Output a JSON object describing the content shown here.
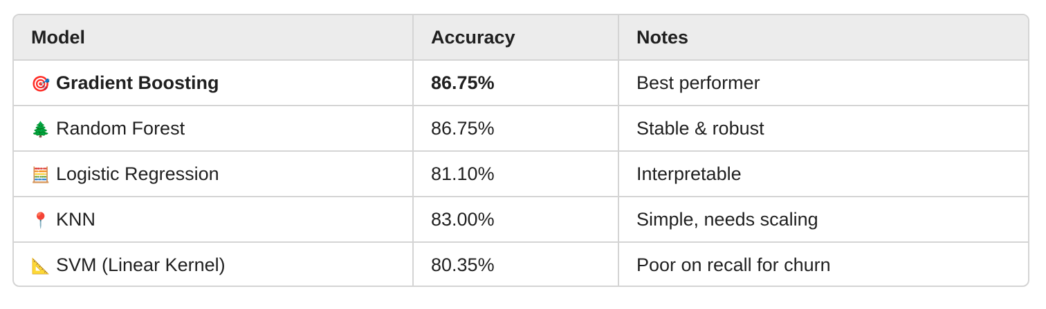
{
  "table": {
    "headers": [
      "Model",
      "Accuracy",
      "Notes"
    ],
    "rows": [
      {
        "icon": "🎯",
        "icon_name": "direct-hit-icon",
        "model": "Gradient Boosting",
        "accuracy": "86.75%",
        "notes": "Best performer",
        "emphasis": true
      },
      {
        "icon": "🌲",
        "icon_name": "evergreen-tree-icon",
        "model": "Random Forest",
        "accuracy": "86.75%",
        "notes": "Stable & robust",
        "emphasis": false
      },
      {
        "icon": "🧮",
        "icon_name": "abacus-icon",
        "model": "Logistic Regression",
        "accuracy": "81.10%",
        "notes": "Interpretable",
        "emphasis": false
      },
      {
        "icon": "📍",
        "icon_name": "round-pushpin-icon",
        "model": "KNN",
        "accuracy": "83.00%",
        "notes": "Simple, needs scaling",
        "emphasis": false
      },
      {
        "icon": "📐",
        "icon_name": "triangular-ruler-icon",
        "model": "SVM (Linear Kernel)",
        "accuracy": "80.35%",
        "notes": "Poor on recall for churn",
        "emphasis": false
      }
    ]
  }
}
